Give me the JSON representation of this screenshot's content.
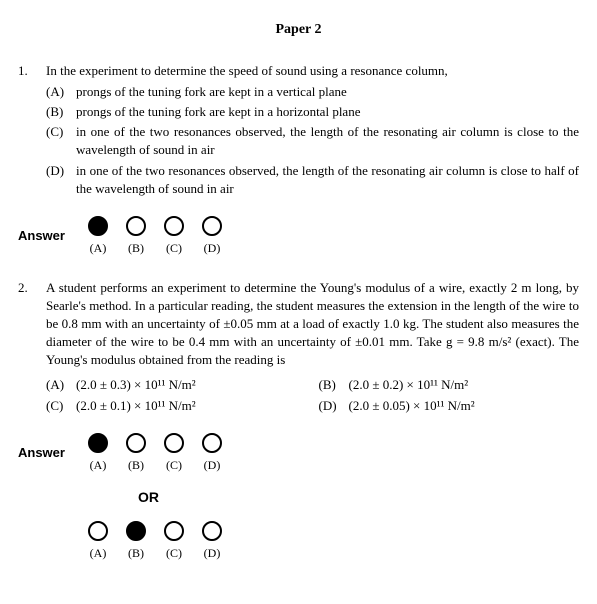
{
  "title": "Paper 2",
  "q1": {
    "number": "1.",
    "stem": "In the experiment to determine the speed of sound using a resonance column,",
    "options": [
      {
        "letter": "(A)",
        "text": "prongs of the tuning fork are kept in a vertical plane"
      },
      {
        "letter": "(B)",
        "text": "prongs of the tuning fork are kept in a horizontal plane"
      },
      {
        "letter": "(C)",
        "text": "in one of the two resonances observed, the length of the resonating air column is close to the wavelength of sound in air"
      },
      {
        "letter": "(D)",
        "text": "in one of the two resonances observed, the length of the resonating air column is close to half of the wavelength of sound in air"
      }
    ]
  },
  "q2": {
    "number": "2.",
    "stem": "A student performs an experiment to determine the Young's modulus of a wire, exactly 2 m long, by Searle's method. In a particular reading, the student measures the extension in the length of the wire to be 0.8 mm with an uncertainty of ±0.05 mm at a load of exactly 1.0 kg. The student also measures the diameter of the wire to be 0.4 mm with an uncertainty of ±0.01 mm. Take g = 9.8 m/s² (exact). The Young's modulus obtained from the reading is",
    "options": [
      {
        "letter": "(A)",
        "text": "(2.0 ± 0.3) × 10¹¹ N/m²"
      },
      {
        "letter": "(B)",
        "text": "(2.0 ± 0.2) × 10¹¹ N/m²"
      },
      {
        "letter": "(C)",
        "text": "(2.0 ± 0.1) × 10¹¹ N/m²"
      },
      {
        "letter": "(D)",
        "text": "(2.0 ± 0.05) × 10¹¹ N/m²"
      }
    ]
  },
  "answer_label": "Answer",
  "or_label": "OR",
  "bubble_letters": [
    "(A)",
    "(B)",
    "(C)",
    "(D)"
  ],
  "answers": {
    "q1_selected": 0,
    "q2_top_selected": 0,
    "q2_bottom_selected": 1
  },
  "colors": {
    "text": "#000000",
    "background": "#ffffff",
    "bubble_border": "#000000",
    "bubble_fill": "#000000"
  }
}
